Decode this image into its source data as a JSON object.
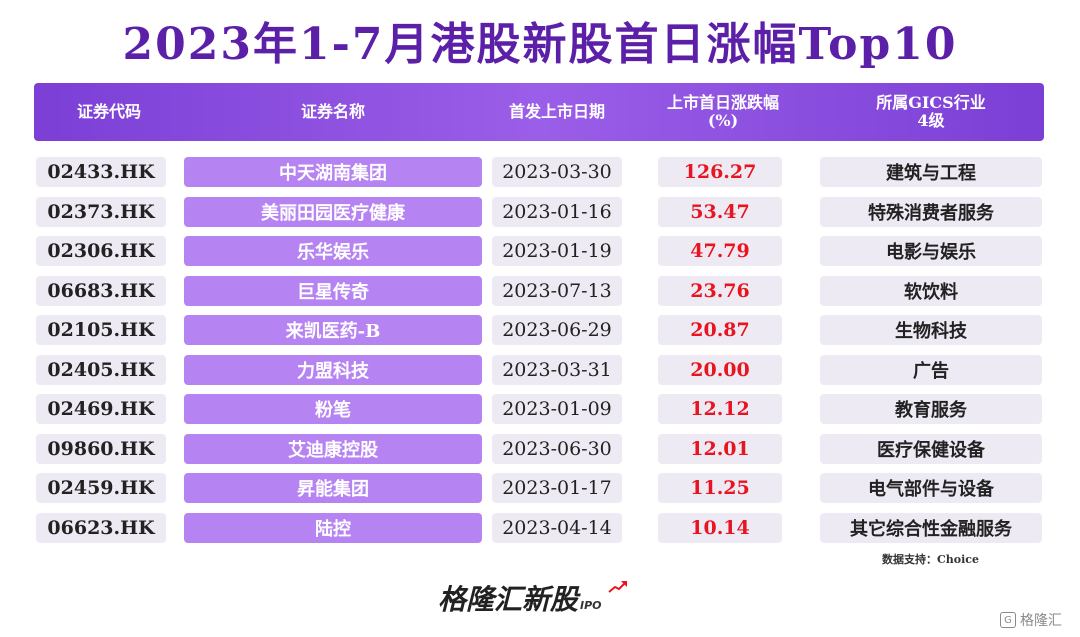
{
  "title": "2023年1-7月港股新股首日涨幅Top10",
  "columns": {
    "code": "证券代码",
    "name": "证券名称",
    "date": "首发上市日期",
    "rise_line1": "上市首日涨跌幅",
    "rise_line2": "(%)",
    "ind_line1": "所属GICS行业",
    "ind_line2": "4级"
  },
  "rows": [
    {
      "code": "02433.HK",
      "name": "中天湖南集团",
      "date": "2023-03-30",
      "rise": "126.27",
      "industry": "建筑与工程"
    },
    {
      "code": "02373.HK",
      "name": "美丽田园医疗健康",
      "date": "2023-01-16",
      "rise": "53.47",
      "industry": "特殊消费者服务"
    },
    {
      "code": "02306.HK",
      "name": "乐华娱乐",
      "date": "2023-01-19",
      "rise": "47.79",
      "industry": "电影与娱乐"
    },
    {
      "code": "06683.HK",
      "name": "巨星传奇",
      "date": "2023-07-13",
      "rise": "23.76",
      "industry": "软饮料"
    },
    {
      "code": "02105.HK",
      "name": "来凯医药-B",
      "date": "2023-06-29",
      "rise": "20.87",
      "industry": "生物科技"
    },
    {
      "code": "02405.HK",
      "name": "力盟科技",
      "date": "2023-03-31",
      "rise": "20.00",
      "industry": "广告"
    },
    {
      "code": "02469.HK",
      "name": "粉笔",
      "date": "2023-01-09",
      "rise": "12.12",
      "industry": "教育服务"
    },
    {
      "code": "09860.HK",
      "name": "艾迪康控股",
      "date": "2023-06-30",
      "rise": "12.01",
      "industry": "医疗保健设备"
    },
    {
      "code": "02459.HK",
      "name": "昇能集团",
      "date": "2023-01-17",
      "rise": "11.25",
      "industry": "电气部件与设备"
    },
    {
      "code": "06623.HK",
      "name": "陆控",
      "date": "2023-04-14",
      "rise": "10.14",
      "industry": "其它综合性金融服务"
    }
  ],
  "source": "数据支持：Choice",
  "brand": {
    "name": "格隆汇新股",
    "suffix": "IPO"
  },
  "watermark": "格隆汇",
  "colors": {
    "title": "#5b1fa8",
    "header": "#7b3fd6",
    "name_cell": "#b684f2",
    "rise_text": "#e8141f"
  }
}
